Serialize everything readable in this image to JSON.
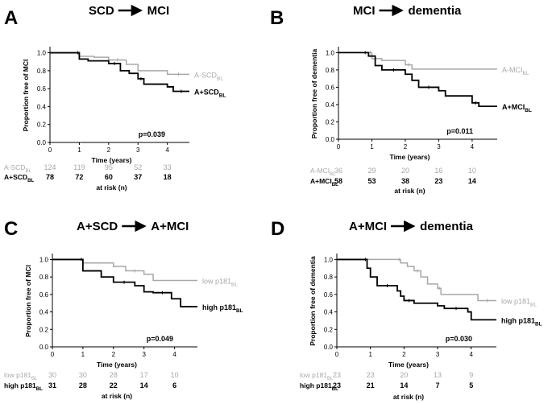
{
  "chart_data": [
    {
      "type": "line",
      "panel": "A",
      "title": "SCD",
      "title_to": "MCI",
      "xlabel": "Time (years)",
      "ylabel": "Proportion free of MCI",
      "xlim": [
        0,
        4.75
      ],
      "ylim": [
        0,
        1.05
      ],
      "xticks": [
        0,
        1,
        2,
        3,
        4
      ],
      "yticks": [
        "0.0",
        "0.2",
        "0.4",
        "0.6",
        "0.8",
        "1.0"
      ],
      "p_value": "p=0.039",
      "risk_title": "at risk (n)",
      "colors": [
        "#a8a8a8",
        "#000000"
      ],
      "series": [
        {
          "name": "A-SCD",
          "sub": "BL",
          "color": "#a8a8a8",
          "x": [
            0,
            0.9,
            1.0,
            1.5,
            2.0,
            2.6,
            3.0,
            4.0,
            4.75
          ],
          "y": [
            1.0,
            1.0,
            0.96,
            0.95,
            0.92,
            0.87,
            0.8,
            0.76,
            0.76
          ],
          "at_risk": [
            "124",
            "119",
            "95",
            "52",
            "33"
          ]
        },
        {
          "name": "A+SCD",
          "sub": "BL",
          "color": "#000000",
          "x": [
            0,
            0.9,
            1.0,
            1.3,
            2.0,
            2.4,
            2.7,
            3.0,
            3.2,
            4.0,
            4.2,
            4.75
          ],
          "y": [
            1.0,
            1.0,
            0.93,
            0.91,
            0.88,
            0.8,
            0.77,
            0.71,
            0.65,
            0.62,
            0.57,
            0.57
          ],
          "at_risk": [
            "78",
            "72",
            "60",
            "37",
            "18"
          ]
        }
      ]
    },
    {
      "type": "line",
      "panel": "B",
      "title": "MCI",
      "title_to": "dementia",
      "xlabel": "Time (years)",
      "ylabel": "Proportion free of dementia",
      "xlim": [
        0,
        4.75
      ],
      "ylim": [
        0,
        1.05
      ],
      "xticks": [
        0,
        1,
        2,
        3,
        4
      ],
      "yticks": [
        "0.0",
        "0.2",
        "0.4",
        "0.6",
        "0.8",
        "1.0"
      ],
      "p_value": "p=0.011",
      "risk_title": "at risk (n)",
      "colors": [
        "#a8a8a8",
        "#000000"
      ],
      "series": [
        {
          "name": "A-MCI",
          "sub": "BL",
          "color": "#a8a8a8",
          "x": [
            0,
            0.9,
            1.0,
            1.3,
            2.0,
            2.2,
            4.75
          ],
          "y": [
            1.0,
            1.0,
            0.93,
            0.91,
            0.86,
            0.81,
            0.81
          ],
          "at_risk": [
            "36",
            "29",
            "20",
            "16",
            "10"
          ]
        },
        {
          "name": "A+MCI",
          "sub": "BL",
          "color": "#000000",
          "x": [
            0,
            0.7,
            0.9,
            1.1,
            1.3,
            2.0,
            2.2,
            2.4,
            3.0,
            3.2,
            4.0,
            4.2,
            4.75
          ],
          "y": [
            1.0,
            1.0,
            0.96,
            0.85,
            0.8,
            0.75,
            0.68,
            0.6,
            0.56,
            0.5,
            0.42,
            0.38,
            0.38
          ],
          "at_risk": [
            "58",
            "53",
            "38",
            "23",
            "14"
          ]
        }
      ]
    },
    {
      "type": "line",
      "panel": "C",
      "title": "A+SCD",
      "title_to": "A+MCI",
      "xlabel": "Time (years)",
      "ylabel": "Proportion free of MCI",
      "xlim": [
        0,
        4.75
      ],
      "ylim": [
        0,
        1.05
      ],
      "xticks": [
        0,
        1,
        2,
        3,
        4
      ],
      "yticks": [
        "0.0",
        "0.2",
        "0.4",
        "0.6",
        "0.8",
        "1.0"
      ],
      "p_value": "p=0.049",
      "risk_title": "at risk (n)",
      "colors": [
        "#a8a8a8",
        "#000000"
      ],
      "series": [
        {
          "name": "low p181",
          "sub": "BL",
          "color": "#a8a8a8",
          "x": [
            0,
            0.9,
            1.0,
            2.0,
            2.4,
            3.0,
            3.3,
            4.75
          ],
          "y": [
            1.0,
            1.0,
            0.96,
            0.92,
            0.87,
            0.83,
            0.76,
            0.76
          ],
          "at_risk": [
            "30",
            "30",
            "28",
            "17",
            "10"
          ]
        },
        {
          "name": "high p181",
          "sub": "BL",
          "color": "#000000",
          "x": [
            0,
            0.9,
            1.0,
            1.6,
            2.0,
            2.7,
            3.0,
            3.3,
            3.9,
            4.2,
            4.75
          ],
          "y": [
            1.0,
            1.0,
            0.87,
            0.8,
            0.74,
            0.7,
            0.63,
            0.62,
            0.55,
            0.46,
            0.46
          ],
          "at_risk": [
            "31",
            "28",
            "22",
            "14",
            "6"
          ]
        }
      ]
    },
    {
      "type": "line",
      "panel": "D",
      "title": "A+MCI",
      "title_to": "dementia",
      "xlabel": "Time (years)",
      "ylabel": "Proportion free of dementia",
      "xlim": [
        0,
        4.75
      ],
      "ylim": [
        0,
        1.05
      ],
      "xticks": [
        0,
        1,
        2,
        3,
        4
      ],
      "yticks": [
        "0.0",
        "0.2",
        "0.4",
        "0.6",
        "0.8",
        "1.0"
      ],
      "p_value": "p=0.030",
      "risk_title": "at risk (n)",
      "colors": [
        "#a8a8a8",
        "#000000"
      ],
      "series": [
        {
          "name": "low p181",
          "sub": "BL",
          "color": "#a8a8a8",
          "x": [
            0,
            1.8,
            1.9,
            2.1,
            2.3,
            2.5,
            2.7,
            3.0,
            3.1,
            4.0,
            4.2,
            4.75
          ],
          "y": [
            1.0,
            1.0,
            0.96,
            0.92,
            0.87,
            0.8,
            0.72,
            0.67,
            0.6,
            0.6,
            0.53,
            0.53
          ],
          "at_risk": [
            "23",
            "23",
            "20",
            "13",
            "9"
          ]
        },
        {
          "name": "high p181",
          "sub": "BL",
          "color": "#000000",
          "x": [
            0,
            0.8,
            0.9,
            1.0,
            1.2,
            1.8,
            1.9,
            2.0,
            2.3,
            3.0,
            3.2,
            3.9,
            4.0,
            4.75
          ],
          "y": [
            1.0,
            1.0,
            0.9,
            0.8,
            0.7,
            0.64,
            0.58,
            0.53,
            0.5,
            0.47,
            0.44,
            0.4,
            0.31,
            0.31
          ],
          "at_risk": [
            "23",
            "21",
            "14",
            "7",
            "5"
          ]
        }
      ]
    }
  ]
}
